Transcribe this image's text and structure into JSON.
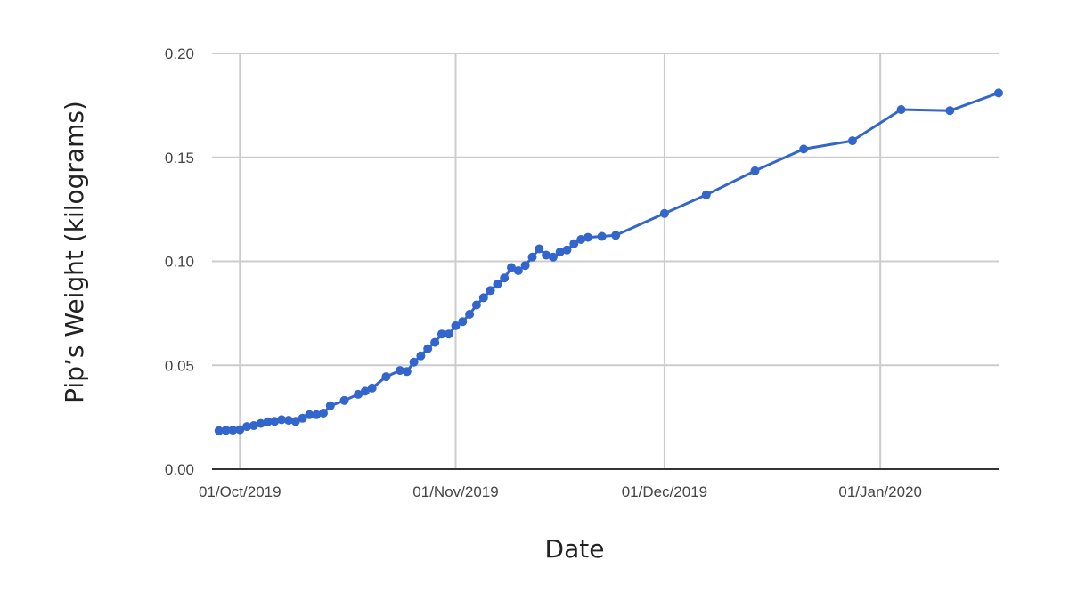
{
  "chart_data": {
    "type": "line",
    "xlabel": "Date",
    "ylabel": "Pip’s Weight (kilograms)",
    "x_ticks": [
      "01/Oct/2019",
      "01/Nov/2019",
      "01/Dec/2019",
      "01/Jan/2020"
    ],
    "x_tick_dates": [
      "2019-10-01",
      "2019-11-01",
      "2019-12-01",
      "2020-01-01"
    ],
    "y_ticks": [
      "0.00",
      "0.05",
      "0.10",
      "0.15",
      "0.20"
    ],
    "xlim": [
      "2019-09-27",
      "2020-01-18"
    ],
    "ylim": [
      0,
      0.2
    ],
    "grid": true,
    "legend": "none",
    "series_color": "#3366cc",
    "series": [
      {
        "points": [
          [
            "2019-09-28",
            0.0185
          ],
          [
            "2019-09-29",
            0.0187
          ],
          [
            "2019-09-30",
            0.0188
          ],
          [
            "2019-10-01",
            0.019
          ],
          [
            "2019-10-02",
            0.0205
          ],
          [
            "2019-10-03",
            0.021
          ],
          [
            "2019-10-04",
            0.022
          ],
          [
            "2019-10-05",
            0.0228
          ],
          [
            "2019-10-06",
            0.023
          ],
          [
            "2019-10-07",
            0.0238
          ],
          [
            "2019-10-08",
            0.0235
          ],
          [
            "2019-10-09",
            0.023
          ],
          [
            "2019-10-10",
            0.0245
          ],
          [
            "2019-10-11",
            0.0262
          ],
          [
            "2019-10-12",
            0.0262
          ],
          [
            "2019-10-13",
            0.027
          ],
          [
            "2019-10-14",
            0.0305
          ],
          [
            "2019-10-16",
            0.033
          ],
          [
            "2019-10-18",
            0.036
          ],
          [
            "2019-10-19",
            0.0375
          ],
          [
            "2019-10-20",
            0.039
          ],
          [
            "2019-10-22",
            0.0445
          ],
          [
            "2019-10-24",
            0.0475
          ],
          [
            "2019-10-25",
            0.047
          ],
          [
            "2019-10-26",
            0.0515
          ],
          [
            "2019-10-27",
            0.0545
          ],
          [
            "2019-10-28",
            0.058
          ],
          [
            "2019-10-29",
            0.061
          ],
          [
            "2019-10-30",
            0.065
          ],
          [
            "2019-10-31",
            0.065
          ],
          [
            "2019-11-01",
            0.069
          ],
          [
            "2019-11-02",
            0.071
          ],
          [
            "2019-11-03",
            0.0745
          ],
          [
            "2019-11-04",
            0.079
          ],
          [
            "2019-11-05",
            0.0825
          ],
          [
            "2019-11-06",
            0.086
          ],
          [
            "2019-11-07",
            0.089
          ],
          [
            "2019-11-08",
            0.092
          ],
          [
            "2019-11-09",
            0.097
          ],
          [
            "2019-11-10",
            0.0955
          ],
          [
            "2019-11-11",
            0.098
          ],
          [
            "2019-11-12",
            0.102
          ],
          [
            "2019-11-13",
            0.106
          ],
          [
            "2019-11-14",
            0.103
          ],
          [
            "2019-11-15",
            0.102
          ],
          [
            "2019-11-16",
            0.1045
          ],
          [
            "2019-11-17",
            0.1055
          ],
          [
            "2019-11-18",
            0.1085
          ],
          [
            "2019-11-19",
            0.1105
          ],
          [
            "2019-11-20",
            0.1115
          ],
          [
            "2019-11-22",
            0.112
          ],
          [
            "2019-11-24",
            0.1125
          ],
          [
            "2019-12-01",
            0.123
          ],
          [
            "2019-12-07",
            0.132
          ],
          [
            "2019-12-14",
            0.1435
          ],
          [
            "2019-12-21",
            0.154
          ],
          [
            "2019-12-28",
            0.158
          ],
          [
            "2020-01-04",
            0.173
          ],
          [
            "2020-01-11",
            0.1725
          ],
          [
            "2020-01-18",
            0.181
          ]
        ]
      }
    ]
  }
}
